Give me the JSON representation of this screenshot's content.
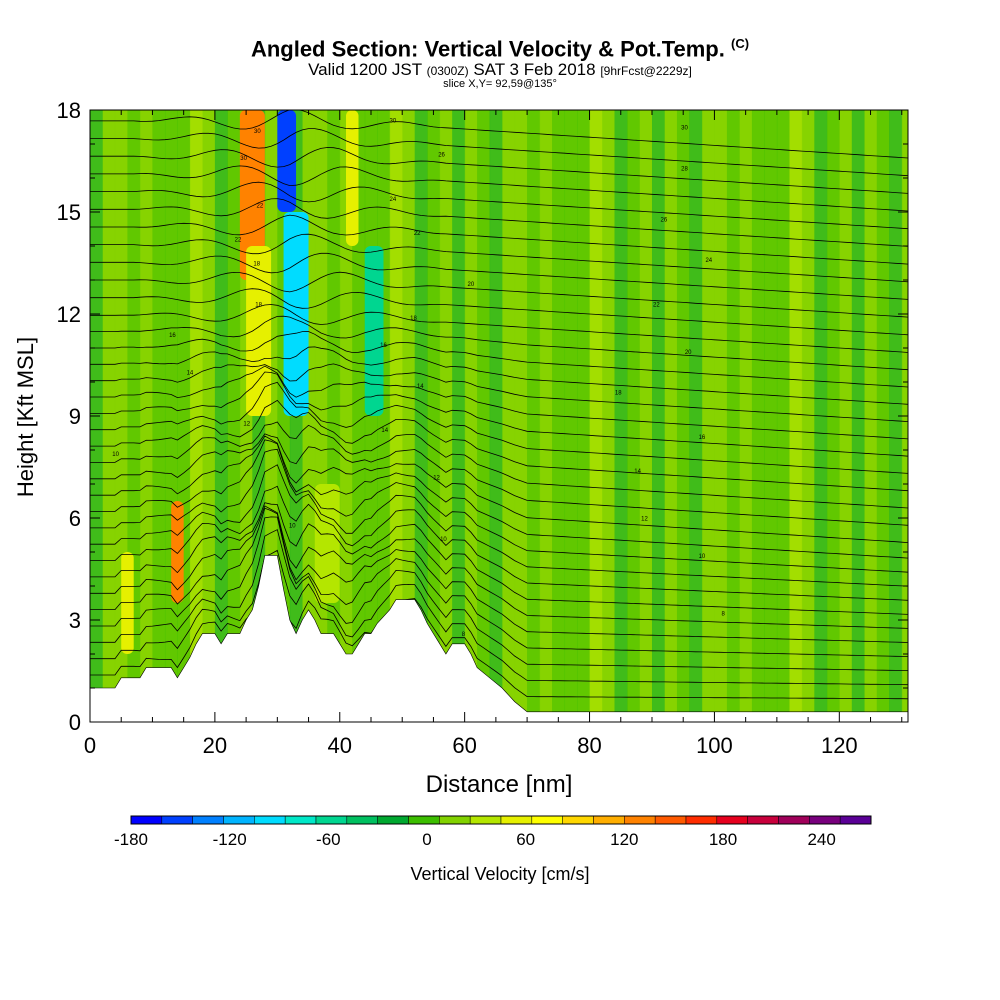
{
  "header": {
    "title": "Angled Section: Vertical Velocity & Pot.Temp.",
    "title_tag": "(C)",
    "valid_prefix": "Valid 1200 JST",
    "valid_z": "(0300Z)",
    "valid_date": "SAT 3 Feb 2018",
    "forecast": "[9hrFcst@2229z]",
    "slice": "slice X,Y= 92,59@135°"
  },
  "chart_data": {
    "type": "heatmap",
    "title": "Angled Section: Vertical Velocity & Pot.Temp.",
    "xlabel": "Distance [nm]",
    "ylabel": "Height [Kft MSL]",
    "xlim": [
      0,
      131
    ],
    "ylim": [
      0,
      18
    ],
    "x_ticks": [
      "0",
      "20",
      "40",
      "60",
      "80",
      "100",
      "120"
    ],
    "y_ticks": [
      "0",
      "3",
      "6",
      "9",
      "12",
      "15",
      "18"
    ],
    "x_tick_values": [
      0,
      20,
      40,
      60,
      80,
      100,
      120
    ],
    "y_tick_values": [
      0,
      3,
      6,
      9,
      12,
      15,
      18
    ],
    "terrain": [
      [
        0,
        1.0
      ],
      [
        4,
        1.0
      ],
      [
        5,
        1.3
      ],
      [
        8,
        1.3
      ],
      [
        9,
        1.6
      ],
      [
        13,
        1.6
      ],
      [
        14,
        1.3
      ],
      [
        15,
        1.6
      ],
      [
        16,
        1.9
      ],
      [
        17,
        2.3
      ],
      [
        18,
        2.6
      ],
      [
        20,
        2.6
      ],
      [
        21,
        2.3
      ],
      [
        22,
        2.6
      ],
      [
        24,
        2.6
      ],
      [
        25,
        3.0
      ],
      [
        26,
        3.3
      ],
      [
        27,
        4.0
      ],
      [
        28,
        4.9
      ],
      [
        30,
        4.9
      ],
      [
        31,
        3.9
      ],
      [
        32,
        3.0
      ],
      [
        33,
        2.6
      ],
      [
        34,
        3.0
      ],
      [
        35,
        3.3
      ],
      [
        36,
        3.0
      ],
      [
        37,
        2.6
      ],
      [
        39,
        2.6
      ],
      [
        40,
        2.3
      ],
      [
        41,
        2.0
      ],
      [
        42,
        2.0
      ],
      [
        43,
        2.3
      ],
      [
        44,
        2.6
      ],
      [
        45,
        2.6
      ],
      [
        46,
        2.9
      ],
      [
        48,
        3.3
      ],
      [
        49,
        3.6
      ],
      [
        52,
        3.6
      ],
      [
        53,
        3.3
      ],
      [
        54,
        2.9
      ],
      [
        55,
        2.6
      ],
      [
        56,
        2.3
      ],
      [
        57,
        2.0
      ],
      [
        58,
        2.3
      ],
      [
        60,
        2.3
      ],
      [
        61,
        2.0
      ],
      [
        62,
        1.6
      ],
      [
        64,
        1.3
      ],
      [
        66,
        1.0
      ],
      [
        68,
        0.6
      ],
      [
        70,
        0.3
      ],
      [
        131,
        0.3
      ]
    ],
    "velocity_cells": [
      {
        "x": [
          24,
          28
        ],
        "y": [
          13,
          18
        ],
        "value": 120
      },
      {
        "x": [
          25,
          29
        ],
        "y": [
          9,
          14
        ],
        "value": 60
      },
      {
        "x": [
          30,
          33
        ],
        "y": [
          15,
          18
        ],
        "value": -150
      },
      {
        "x": [
          31,
          35
        ],
        "y": [
          9,
          15
        ],
        "value": -90
      },
      {
        "x": [
          13,
          15
        ],
        "y": [
          3.5,
          6.5
        ],
        "value": 120
      },
      {
        "x": [
          44,
          47
        ],
        "y": [
          9,
          14
        ],
        "value": -60
      },
      {
        "x": [
          41,
          43
        ],
        "y": [
          14,
          18
        ],
        "value": 45
      },
      {
        "x": [
          36,
          40
        ],
        "y": [
          3.5,
          7
        ],
        "value": 40
      },
      {
        "x": [
          5,
          7
        ],
        "y": [
          2,
          5
        ],
        "value": 50
      }
    ],
    "contour_labels": [
      {
        "x": 26.8,
        "y": 17.4,
        "text": "30"
      },
      {
        "x": 24.6,
        "y": 16.6,
        "text": "30"
      },
      {
        "x": 27.2,
        "y": 15.2,
        "text": "22"
      },
      {
        "x": 23.7,
        "y": 14.2,
        "text": "22"
      },
      {
        "x": 26.7,
        "y": 13.5,
        "text": "18"
      },
      {
        "x": 27.0,
        "y": 12.3,
        "text": "18"
      },
      {
        "x": 13.2,
        "y": 11.4,
        "text": "16"
      },
      {
        "x": 16.0,
        "y": 10.3,
        "text": "14"
      },
      {
        "x": 25.1,
        "y": 8.8,
        "text": "12"
      },
      {
        "x": 4.1,
        "y": 7.9,
        "text": "10"
      },
      {
        "x": 32.4,
        "y": 5.8,
        "text": "10"
      },
      {
        "x": 48.5,
        "y": 17.7,
        "text": "30"
      },
      {
        "x": 56.3,
        "y": 16.7,
        "text": "26"
      },
      {
        "x": 48.5,
        "y": 15.4,
        "text": "24"
      },
      {
        "x": 52.4,
        "y": 14.4,
        "text": "22"
      },
      {
        "x": 61.0,
        "y": 12.9,
        "text": "20"
      },
      {
        "x": 51.8,
        "y": 11.9,
        "text": "18"
      },
      {
        "x": 47.0,
        "y": 11.1,
        "text": "16"
      },
      {
        "x": 52.9,
        "y": 9.9,
        "text": "14"
      },
      {
        "x": 47.2,
        "y": 8.6,
        "text": "14"
      },
      {
        "x": 55.5,
        "y": 7.2,
        "text": "12"
      },
      {
        "x": 56.6,
        "y": 5.4,
        "text": "10"
      },
      {
        "x": 59.8,
        "y": 2.6,
        "text": "8"
      },
      {
        "x": 95.2,
        "y": 17.5,
        "text": "30"
      },
      {
        "x": 95.2,
        "y": 16.3,
        "text": "28"
      },
      {
        "x": 91.9,
        "y": 14.8,
        "text": "26"
      },
      {
        "x": 99.1,
        "y": 13.6,
        "text": "24"
      },
      {
        "x": 90.7,
        "y": 12.3,
        "text": "22"
      },
      {
        "x": 95.8,
        "y": 10.9,
        "text": "20"
      },
      {
        "x": 84.6,
        "y": 9.7,
        "text": "18"
      },
      {
        "x": 98.0,
        "y": 8.4,
        "text": "16"
      },
      {
        "x": 87.7,
        "y": 7.4,
        "text": "14"
      },
      {
        "x": 88.8,
        "y": 6.0,
        "text": "12"
      },
      {
        "x": 98.0,
        "y": 4.9,
        "text": "10"
      },
      {
        "x": 101.4,
        "y": 3.2,
        "text": "8"
      }
    ]
  },
  "colorbar": {
    "title": "Vertical Velocity [cm/s]",
    "tick_labels": [
      "-180",
      "-120",
      "-60",
      "0",
      "60",
      "120",
      "180",
      "240"
    ],
    "tick_values": [
      -180,
      -120,
      -60,
      0,
      60,
      120,
      180,
      240
    ],
    "min": -180,
    "max": 270,
    "colors": [
      "#0000ff",
      "#0040ff",
      "#0080ff",
      "#00b4ff",
      "#00dcff",
      "#00e8c8",
      "#00d690",
      "#00c060",
      "#00a830",
      "#3cbe00",
      "#82d200",
      "#b4e600",
      "#e6f000",
      "#ffff00",
      "#ffd700",
      "#ffae00",
      "#ff8200",
      "#ff5a00",
      "#ff2d00",
      "#e6001e",
      "#c8003c",
      "#a0005a",
      "#78007d",
      "#5a0096"
    ]
  }
}
